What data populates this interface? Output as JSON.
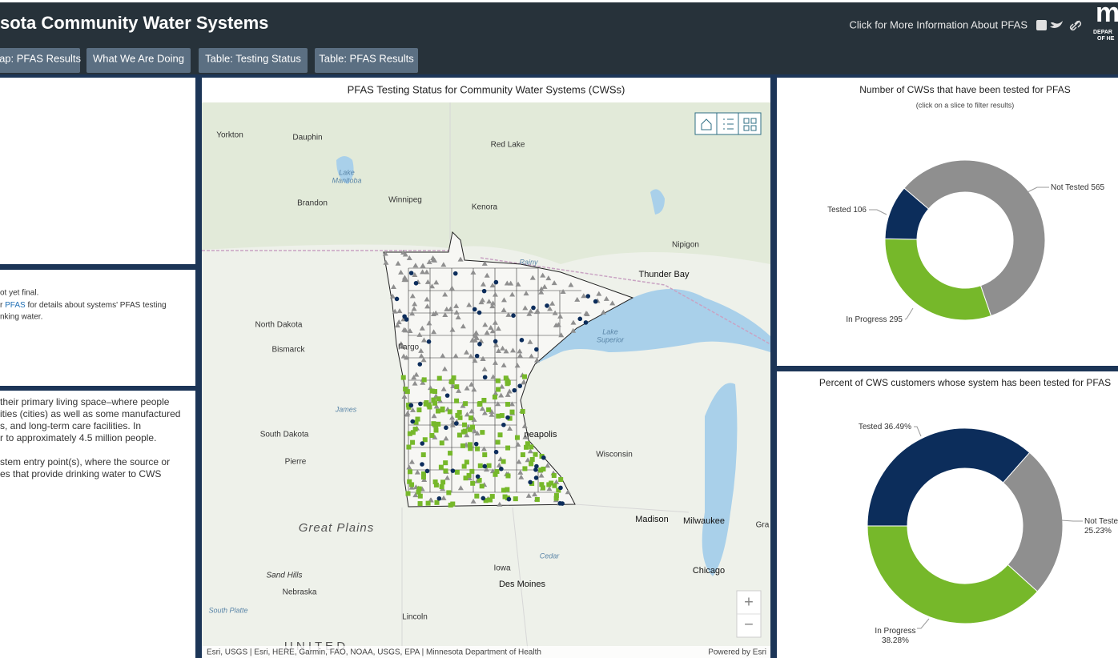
{
  "header": {
    "title": "sota Community Water Systems",
    "info_link": "Click for More Information About PFAS",
    "logo_mark": "m",
    "logo_lines": [
      "DEPAR",
      "OF HE"
    ]
  },
  "tabs": [
    "ap: PFAS Results",
    "What We Are Doing",
    "Table: Testing Status",
    "Table: PFAS Results"
  ],
  "left_panels": {
    "notes": {
      "line1": "ot yet final.",
      "line2_start": "r",
      "line2_link": "PFAS",
      "line2_end": "for details about systems' PFAS testing",
      "line3": "nking water."
    },
    "description": [
      "their primary living space–where people",
      "ities (cities) as well as some manufactured",
      "s, and long-term care facilities. In",
      "r to approximately 4.5 million people.",
      "stem entry point(s), where the source or",
      "es that provide drinking water to CWS"
    ]
  },
  "map": {
    "title": "PFAS Testing Status for Community Water Systems (CWSs)",
    "labels": [
      "Yorkton",
      "Dauphin",
      "Red Lake",
      "Lake",
      "Manitoba",
      "Brandon",
      "Winnipeg",
      "Kenora",
      "Rainy",
      "Nipigon",
      "Thunder Bay",
      "North Dakota",
      "Bismarck",
      "Fargo",
      "Lake",
      "Superior",
      "South Dakota",
      "Pierre",
      "James",
      "neapolis",
      "Wisconsin",
      "Great Plains",
      "Madison",
      "Milwaukee",
      "Gra",
      "Iowa",
      "Des Moines",
      "Cedar",
      "Chicago",
      "Sand Hills",
      "Nebraska",
      "South Platte",
      "Lincoln",
      "U N I T E D"
    ],
    "attribution": "Esri, USGS | Esri, HERE, Garmin, FAO, NOAA, USGS, EPA | Minnesota Department of Health",
    "powered": "Powered by Esri",
    "zoom_in": "+",
    "zoom_out": "−"
  },
  "chart_data": [
    {
      "type": "pie",
      "title": "Number of CWSs that have been tested for PFAS",
      "subtitle": "(click on a slice to filter results)",
      "categories": [
        "Not Tested",
        "In Progress",
        "Tested"
      ],
      "values": [
        565,
        295,
        106
      ],
      "colors": [
        "#8f8f8f",
        "#76b82a",
        "#0c2d5b"
      ]
    },
    {
      "type": "pie",
      "title": "Percent of CWS customers whose system has been tested for PFAS",
      "categories": [
        "Tested",
        "Not Teste",
        "In Progress"
      ],
      "values": [
        36.49,
        25.23,
        38.28
      ],
      "value_labels": [
        "36.49%",
        "25.23%",
        "38.28%"
      ],
      "colors": [
        "#0c2d5b",
        "#8f8f8f",
        "#76b82a"
      ]
    }
  ]
}
